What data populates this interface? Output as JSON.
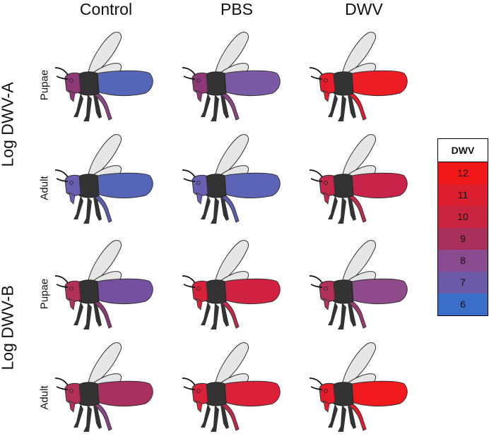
{
  "columns": [
    "Control",
    "PBS",
    "DWV"
  ],
  "groups": [
    {
      "label": "Log DWV-A",
      "rows": [
        {
          "stage": "Pupae",
          "cells": [
            {
              "head": "#8f3878",
              "body": "#5566b8",
              "legs": "#8a4585"
            },
            {
              "head": "#8f3878",
              "body": "#7a5aa5",
              "legs": "#8a4585"
            },
            {
              "head": "#e51c2a",
              "body": "#ec1d24",
              "legs": "#e51c2a"
            }
          ]
        },
        {
          "stage": "Adult",
          "cells": [
            {
              "head": "#6a5fb2",
              "body": "#5566b8",
              "legs": "#5a5fb0"
            },
            {
              "head": "#6a5fb2",
              "body": "#5b64b6",
              "legs": "#5a5fb0"
            },
            {
              "head": "#c42848",
              "body": "#c8244a",
              "legs": "#c42848"
            }
          ]
        }
      ]
    },
    {
      "label": "Log DWV-B",
      "rows": [
        {
          "stage": "Pupae",
          "cells": [
            {
              "head": "#b3305a",
              "body": "#7550a0",
              "legs": "#8f3878"
            },
            {
              "head": "#d8223a",
              "body": "#d02240",
              "legs": "#c42848"
            },
            {
              "head": "#b3305a",
              "body": "#8e4a8a",
              "legs": "#9a3a70"
            }
          ]
        },
        {
          "stage": "Adult",
          "cells": [
            {
              "head": "#b3305a",
              "body": "#a8305e",
              "legs": "#8a4585"
            },
            {
              "head": "#d8223a",
              "body": "#dc2038",
              "legs": "#c42848"
            },
            {
              "head": "#e51c2a",
              "body": "#f01a1e",
              "legs": "#e51c2a"
            }
          ]
        }
      ]
    }
  ],
  "legend": {
    "title": "DWV",
    "levels": [
      {
        "label": "12",
        "color": "#f01818"
      },
      {
        "label": "11",
        "color": "#dc1f30"
      },
      {
        "label": "10",
        "color": "#c8243f"
      },
      {
        "label": "9",
        "color": "#a8305a"
      },
      {
        "label": "8",
        "color": "#8a4a90"
      },
      {
        "label": "7",
        "color": "#6a5aa8"
      },
      {
        "label": "6",
        "color": "#3a6ec8"
      }
    ]
  }
}
